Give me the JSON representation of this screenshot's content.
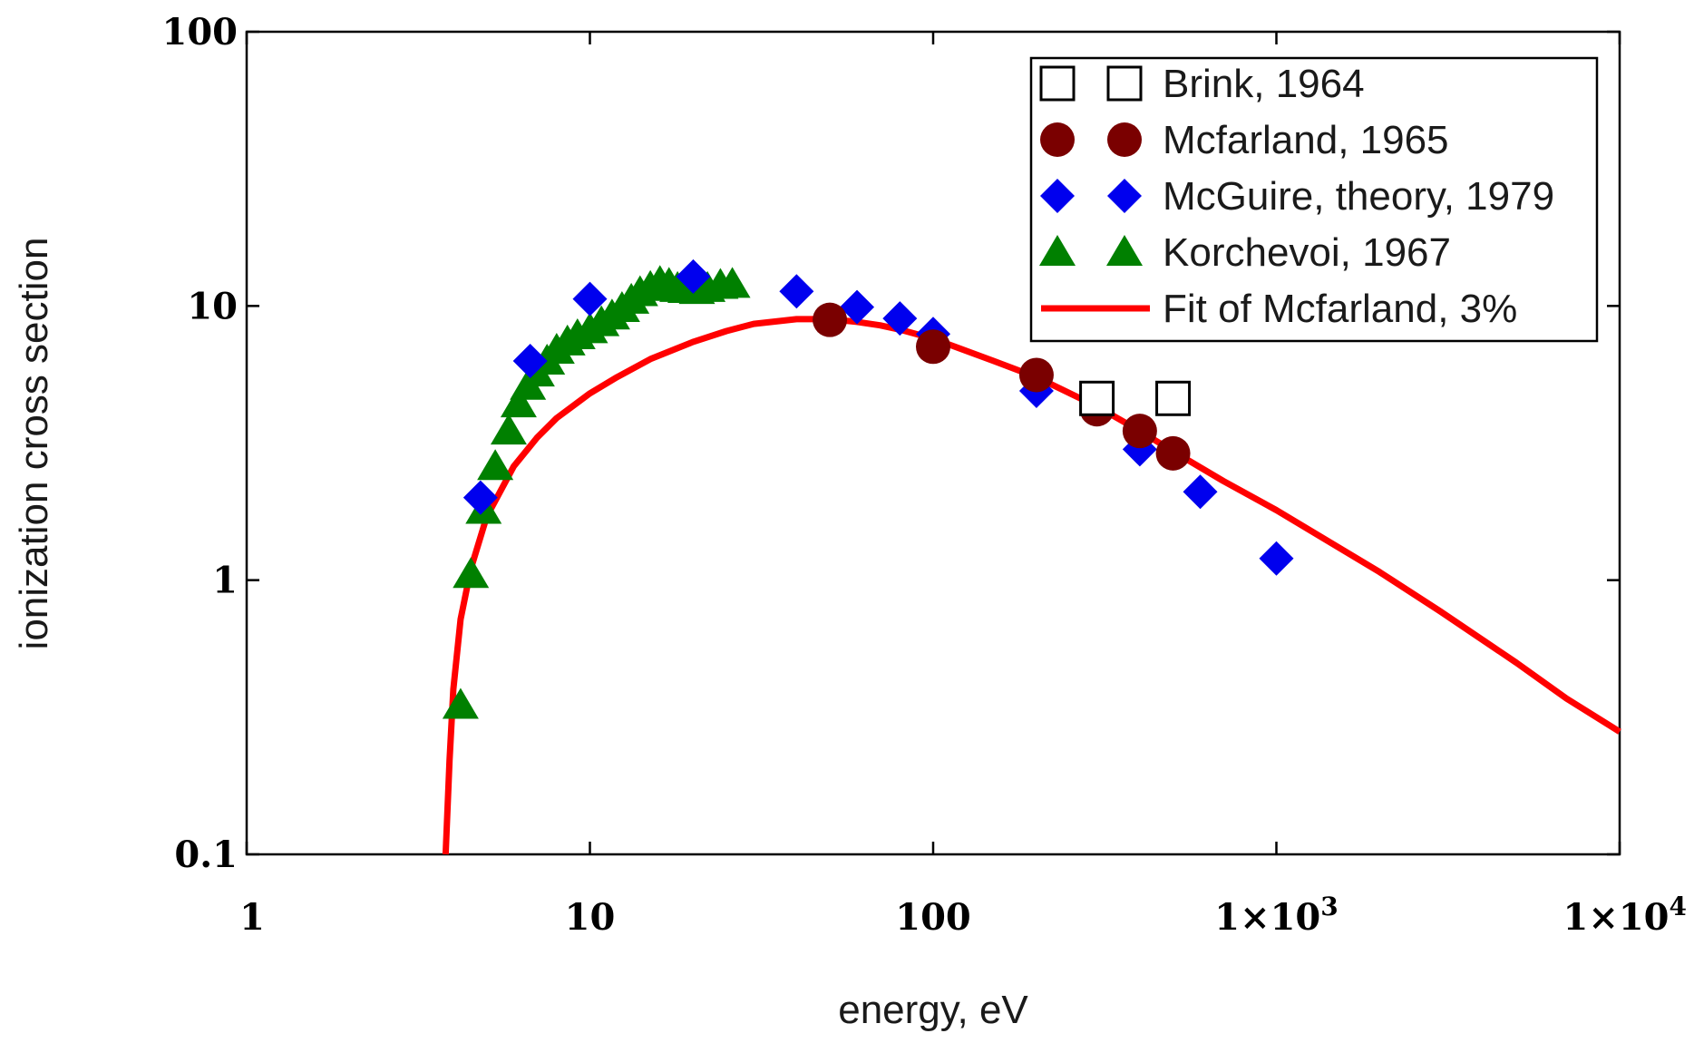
{
  "chart_data": {
    "type": "scatter",
    "x_scale": "log",
    "y_scale": "log",
    "xlim": [
      1,
      10000
    ],
    "ylim": [
      0.1,
      100
    ],
    "xlabel": "energy, eV",
    "ylabel": "ionization cross section",
    "x_ticks": [
      {
        "value": 1,
        "label": "1"
      },
      {
        "value": 10,
        "label": "10"
      },
      {
        "value": 100,
        "label": "100"
      },
      {
        "value": 1000,
        "label": "1×10",
        "exp": "3"
      },
      {
        "value": 10000,
        "label": "1×10",
        "exp": "4"
      }
    ],
    "y_ticks": [
      {
        "value": 0.1,
        "label": "0.1"
      },
      {
        "value": 1,
        "label": "1"
      },
      {
        "value": 10,
        "label": "10"
      },
      {
        "value": 100,
        "label": "100"
      }
    ],
    "legend_position": "top-right",
    "series": [
      {
        "name": "Brink, 1964",
        "marker": "open-square",
        "color": "#000000",
        "points": [
          [
            300,
            4.6
          ],
          [
            500,
            4.6
          ]
        ]
      },
      {
        "name": "Mcfarland, 1965",
        "marker": "circle",
        "color": "#7a0000",
        "points": [
          [
            50,
            8.9
          ],
          [
            100,
            7.1
          ],
          [
            200,
            5.6
          ],
          [
            300,
            4.2
          ],
          [
            400,
            3.5
          ],
          [
            500,
            2.9
          ]
        ]
      },
      {
        "name": "McGuire, theory, 1979",
        "marker": "diamond",
        "color": "#0000ee",
        "points": [
          [
            4.8,
            2.0
          ],
          [
            6.7,
            6.3
          ],
          [
            10,
            10.6
          ],
          [
            20,
            12.8
          ],
          [
            40,
            11.3
          ],
          [
            60,
            9.9
          ],
          [
            80,
            9.0
          ],
          [
            100,
            7.9
          ],
          [
            200,
            4.9
          ],
          [
            400,
            3.0
          ],
          [
            600,
            2.1
          ],
          [
            1000,
            1.2
          ]
        ]
      },
      {
        "name": "Korchevoi, 1967",
        "marker": "triangle",
        "color": "#008000",
        "points": [
          [
            4.2,
            0.35
          ],
          [
            4.5,
            1.05
          ],
          [
            4.9,
            1.8
          ],
          [
            5.3,
            2.6
          ],
          [
            5.8,
            3.5
          ],
          [
            6.2,
            4.4
          ],
          [
            6.6,
            5.1
          ],
          [
            7.0,
            5.7
          ],
          [
            7.5,
            6.3
          ],
          [
            8.0,
            6.9
          ],
          [
            8.6,
            7.4
          ],
          [
            9.2,
            7.8
          ],
          [
            10,
            8.2
          ],
          [
            10.8,
            8.7
          ],
          [
            11.6,
            9.2
          ],
          [
            12.4,
            9.8
          ],
          [
            13.2,
            10.5
          ],
          [
            14,
            11.2
          ],
          [
            15,
            11.7
          ],
          [
            16,
            12.2
          ],
          [
            17,
            12.0
          ],
          [
            18,
            11.6
          ],
          [
            19,
            11.5
          ],
          [
            20.5,
            11.4
          ],
          [
            22,
            11.6
          ],
          [
            24,
            11.9
          ],
          [
            26,
            12.0
          ]
        ]
      },
      {
        "name": "Fit of Mcfarland, 3%",
        "marker": "line",
        "color": "#ff0000",
        "points": [
          [
            3.8,
            0.1
          ],
          [
            3.9,
            0.22
          ],
          [
            4.0,
            0.4
          ],
          [
            4.2,
            0.72
          ],
          [
            4.5,
            1.1
          ],
          [
            5,
            1.7
          ],
          [
            6,
            2.6
          ],
          [
            7,
            3.3
          ],
          [
            8,
            3.9
          ],
          [
            10,
            4.8
          ],
          [
            12,
            5.5
          ],
          [
            15,
            6.4
          ],
          [
            20,
            7.4
          ],
          [
            25,
            8.1
          ],
          [
            30,
            8.6
          ],
          [
            40,
            8.95
          ],
          [
            50,
            8.95
          ],
          [
            60,
            8.75
          ],
          [
            70,
            8.5
          ],
          [
            80,
            8.2
          ],
          [
            100,
            7.6
          ],
          [
            150,
            6.3
          ],
          [
            200,
            5.5
          ],
          [
            300,
            4.3
          ],
          [
            400,
            3.5
          ],
          [
            500,
            2.95
          ],
          [
            700,
            2.3
          ],
          [
            1000,
            1.8
          ],
          [
            2000,
            1.07
          ],
          [
            3000,
            0.77
          ],
          [
            5000,
            0.5
          ],
          [
            7000,
            0.37
          ],
          [
            10000,
            0.28
          ]
        ]
      }
    ]
  }
}
